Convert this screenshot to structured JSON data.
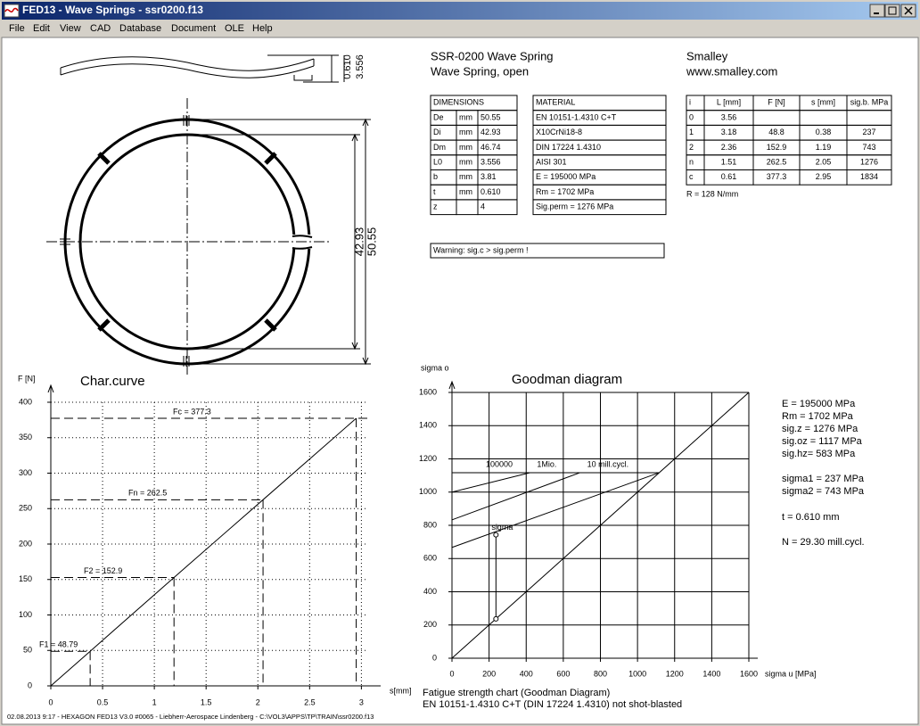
{
  "window": {
    "title": "FED13 - Wave Springs  -  ssr0200.f13",
    "menu": [
      "File",
      "Edit",
      "View",
      "CAD",
      "Database",
      "Document",
      "OLE",
      "Help"
    ]
  },
  "header": {
    "product": "SSR-0200 Wave Spring",
    "variant": "Wave Spring, open",
    "company": "Smalley",
    "website": "www.smalley.com"
  },
  "drawing": {
    "thickness": "0.610",
    "free_height": "3.556",
    "inner_diameter": "42.93",
    "outer_diameter": "50.55"
  },
  "dimensions": {
    "header": "DIMENSIONS",
    "rows": [
      [
        "De",
        "mm",
        "50.55"
      ],
      [
        "Di",
        "mm",
        "42.93"
      ],
      [
        "Dm",
        "mm",
        "46.74"
      ],
      [
        "L0",
        "mm",
        "3.556"
      ],
      [
        "b",
        "mm",
        "3.81"
      ],
      [
        "t",
        "mm",
        "0.610"
      ],
      [
        "z",
        null,
        "4"
      ]
    ]
  },
  "material": {
    "header": "MATERIAL",
    "rows": [
      "EN 10151-1.4310 C+T",
      "X10CrNi18-8",
      "DIN 17224 1.4310",
      "AISI 301",
      "E = 195000 MPa",
      "Rm = 1702 MPa",
      "Sig.perm = 1276 MPa"
    ]
  },
  "loads": {
    "header": [
      "i",
      "L [mm]",
      "F [N]",
      "s [mm]",
      "sig.b. MPa"
    ],
    "rows": [
      [
        "0",
        "3.56",
        null,
        null,
        null
      ],
      [
        "1",
        "3.18",
        "48.8",
        "0.38",
        "237"
      ],
      [
        "2",
        "2.36",
        "152.9",
        "1.19",
        "743"
      ],
      [
        "n",
        "1.51",
        "262.5",
        "2.05",
        "1276"
      ],
      [
        "c",
        "0.61",
        "377.3",
        "2.95",
        "1834"
      ]
    ],
    "note": "R = 128 N/mm"
  },
  "warning": "Warning: sig.c > sig.perm !",
  "results": [
    "E = 195000 MPa",
    "Rm = 1702 MPa",
    "sig.z = 1276 MPa",
    "sig.oz = 1117 MPa",
    "sig.hz= 583 MPa",
    "sigma1 = 237 MPa",
    "sigma2 = 743 MPa",
    "t = 0.610 mm",
    "N = 29.30 mill.cycl."
  ],
  "footer": {
    "caption": "Fatigue strength chart (Goodman Diagram)",
    "material": "EN 10151-1.4310 C+T (DIN 17224 1.4310) not shot-blasted",
    "status": "02.08.2013 9:17 - HEXAGON FED13 V3.0 #0065 - Liebherr-Aerospace Lindenberg - C:\\VOL3\\APPS\\TP\\TRAIN\\ssr0200.f13"
  },
  "chart_data": [
    {
      "type": "line",
      "title": "Char.curve",
      "y_label": "F [N]",
      "x_label": "s[mm]",
      "x": [
        0,
        0.38,
        1.19,
        2.05,
        2.95
      ],
      "values": [
        0,
        48.79,
        152.9,
        262.5,
        377.3
      ],
      "color": "#000000",
      "annotations": [
        "F1 = 48.79",
        "F2 = 152.9",
        "Fn = 262.5",
        "Fc = 377.3"
      ],
      "xlim": [
        0,
        3.1
      ],
      "ylim": [
        0,
        400
      ],
      "xticks": [
        0,
        0.5,
        1,
        1.5,
        2,
        2.5,
        3
      ],
      "yticks": [
        0,
        50,
        100,
        150,
        200,
        250,
        300,
        350,
        400
      ],
      "grid": true
    },
    {
      "type": "goodman",
      "title": "Goodman diagram",
      "y_label": "sigma o",
      "x_label": "sigma u [MPa]",
      "xlim": [
        0,
        1600
      ],
      "ylim": [
        0,
        1600
      ],
      "xticks": [
        0,
        200,
        400,
        600,
        800,
        1000,
        1200,
        1400,
        1600
      ],
      "yticks": [
        0,
        200,
        400,
        600,
        800,
        1000,
        1200,
        1400,
        1600
      ],
      "grid": true,
      "reference_line": {
        "x": [
          0,
          1600
        ],
        "values": [
          0,
          1600
        ]
      },
      "limit_line": {
        "x": [
          0,
          1117
        ],
        "values": [
          1117,
          1117
        ]
      },
      "series": [
        {
          "name": "100000",
          "x": [
            0,
            420
          ],
          "values": [
            1000,
            1117
          ]
        },
        {
          "name": "1Mio.",
          "x": [
            0,
            690
          ],
          "values": [
            833,
            1117
          ]
        },
        {
          "name": "10 mill.cycl.",
          "x": [
            0,
            1117
          ],
          "values": [
            667,
            1117
          ]
        }
      ],
      "stress_point": {
        "name": "sigma",
        "x": [
          237,
          237
        ],
        "values": [
          237,
          743
        ]
      }
    }
  ]
}
